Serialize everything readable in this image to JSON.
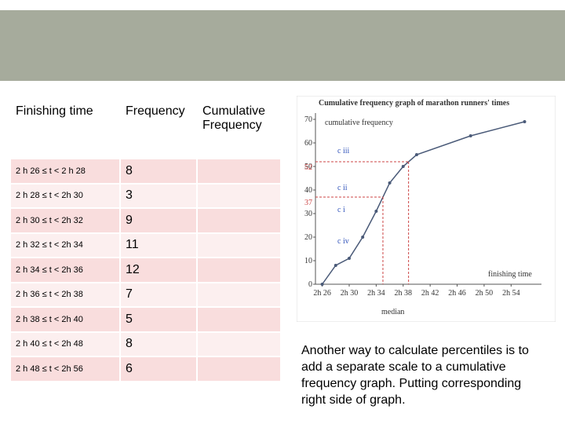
{
  "table": {
    "headers": [
      "Finishing time",
      "Frequency",
      "Cumulative Frequency"
    ],
    "rows": [
      [
        "2 h 26 ≤ t < 2 h 28",
        8
      ],
      [
        "2 h 28 ≤ t < 2h 30",
        3
      ],
      [
        "2 h 30 ≤ t < 2h 32",
        9
      ],
      [
        "2 h 32 ≤ t < 2h 34",
        11
      ],
      [
        "2 h 34 ≤ t < 2h 36",
        12
      ],
      [
        "2 h 36 ≤ t < 2h 38",
        7
      ],
      [
        "2 h 38 ≤ t < 2h 40",
        5
      ],
      [
        "2 h 40 ≤ t < 2h 48",
        8
      ],
      [
        "2 h 48 ≤ t < 2h 56",
        6
      ]
    ]
  },
  "graph": {
    "type": "line",
    "title": "Cumulative frequency graph of marathon runners' times",
    "y_label": "cumulative frequency",
    "x_label": "finishing time",
    "x": [
      26,
      28,
      30,
      32,
      34,
      36,
      38,
      40,
      48,
      56
    ],
    "values": [
      0,
      8,
      11,
      20,
      31,
      43,
      50,
      55,
      63,
      69
    ],
    "color": "#4a5a78",
    "xlim": [
      25,
      58.5
    ],
    "ylim": [
      0,
      70
    ],
    "xticks": [
      {
        "value": 26,
        "label": "2h 26"
      },
      {
        "value": 30,
        "label": "2h 30"
      },
      {
        "value": 34,
        "label": "2h 34"
      },
      {
        "value": 38,
        "label": "2h 38"
      },
      {
        "value": 42,
        "label": "2h 42"
      },
      {
        "value": 46,
        "label": "2h 46"
      },
      {
        "value": 50,
        "label": "2h 50"
      },
      {
        "value": 54,
        "label": "2h 54"
      }
    ],
    "yticks": [
      0,
      10,
      20,
      30,
      40,
      50,
      60,
      70
    ],
    "guides": [
      {
        "value": 52,
        "label": "52"
      },
      {
        "value": 37,
        "label": "37"
      }
    ],
    "annotations": [
      "c iii",
      "c ii",
      "c i",
      "c iv",
      "median"
    ]
  },
  "caption": "Another way to calculate percentiles is to add a separate scale to a cumulative frequency graph. Putting corresponding right side of graph."
}
